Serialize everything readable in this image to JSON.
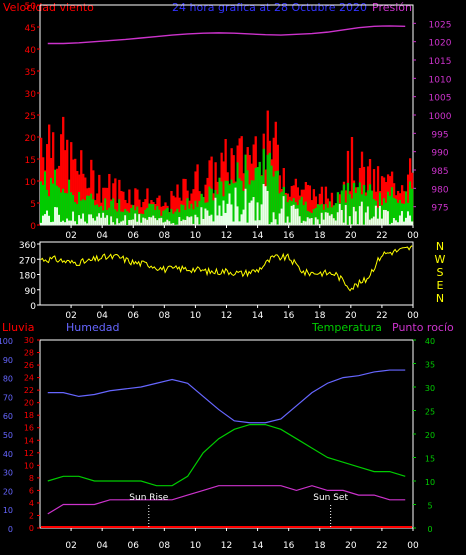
{
  "header": {
    "wind_label": "Velocidad viento",
    "title": "24 hora grafica at   28 Octubre 2020",
    "pressure_label": "Presión"
  },
  "colors": {
    "background": "#000000",
    "frame": "#ffffff",
    "wind_gust": "#ff0000",
    "wind_avg": "#00cc00",
    "wind_low": "#e8ffe8",
    "pressure": "#cc33cc",
    "direction": "#ffff00",
    "rain": "#ff0000",
    "humidity": "#6666ff",
    "temperature": "#00cc00",
    "dewpoint": "#cc33cc",
    "sun_marker": "#ffffff",
    "wind_axis": "#ff0000",
    "pressure_axis": "#cc33cc",
    "direction_axis": "#ffffff"
  },
  "chart_data": [
    {
      "type": "area",
      "name": "wind-pressure",
      "x_ticks": [
        "02",
        "04",
        "06",
        "08",
        "10",
        "12",
        "14",
        "16",
        "18",
        "20",
        "22",
        "00"
      ],
      "wind_axis": {
        "ylim": [
          0,
          50
        ],
        "ticks": [
          "0",
          "5",
          "10",
          "15",
          "20",
          "25",
          "30",
          "35",
          "40",
          "45",
          "50"
        ]
      },
      "pressure_axis": {
        "ylim": [
          970,
          1030
        ],
        "ticks": [
          "975",
          "980",
          "985",
          "990",
          "995",
          "1000",
          "1005",
          "1010",
          "1015",
          "1020",
          "1025"
        ]
      },
      "x_hours": [
        1,
        2,
        3,
        4,
        5,
        6,
        7,
        8,
        9,
        10,
        11,
        12,
        13,
        14,
        15,
        16,
        17,
        18,
        19,
        20,
        21,
        22,
        23,
        24
      ],
      "wind_gust": [
        20,
        14,
        11,
        9,
        8,
        7,
        6,
        4,
        7,
        10,
        11,
        14,
        15,
        18,
        18,
        10,
        8,
        6,
        7,
        14,
        11,
        9,
        10,
        12
      ],
      "wind_avg": [
        10,
        8,
        6,
        5,
        5,
        4,
        4,
        3,
        4,
        6,
        7,
        10,
        12,
        14,
        13,
        7,
        5,
        4,
        5,
        10,
        8,
        6,
        7,
        8
      ],
      "wind_low": [
        3,
        3,
        2,
        2,
        2,
        2,
        2,
        1,
        2,
        3,
        4,
        6,
        7,
        8,
        7,
        4,
        3,
        2,
        3,
        5,
        4,
        3,
        3,
        4
      ],
      "pressure": [
        1019.5,
        1019.5,
        1019.7,
        1020.0,
        1020.3,
        1020.6,
        1021.0,
        1021.4,
        1021.8,
        1022.1,
        1022.3,
        1022.4,
        1022.3,
        1022.1,
        1021.9,
        1021.8,
        1022.0,
        1022.2,
        1022.6,
        1023.2,
        1023.8,
        1024.2,
        1024.3,
        1024.2
      ]
    },
    {
      "type": "line",
      "name": "wind-direction",
      "x_ticks": [
        "02",
        "04",
        "06",
        "08",
        "10",
        "12",
        "14",
        "16",
        "18",
        "20",
        "22",
        "00"
      ],
      "ylim": [
        0,
        360
      ],
      "ticks": [
        "0",
        "90",
        "180",
        "270",
        "360"
      ],
      "compass": [
        "N",
        "W",
        "S",
        "E",
        "N"
      ],
      "x_hours": [
        1,
        2,
        3,
        4,
        5,
        6,
        7,
        8,
        9,
        10,
        11,
        12,
        13,
        14,
        15,
        16,
        17,
        18,
        19,
        20,
        21,
        22,
        23,
        24
      ],
      "direction": [
        270,
        250,
        255,
        280,
        285,
        250,
        240,
        210,
        215,
        210,
        195,
        200,
        185,
        205,
        280,
        280,
        190,
        190,
        185,
        100,
        150,
        300,
        320,
        340
      ]
    },
    {
      "type": "line",
      "name": "rain-humidity-temperature",
      "labels": {
        "rain": "Lluvia",
        "humidity": "Humedad",
        "temperature": "Temperatura",
        "dewpoint": "Punto rocío"
      },
      "x_ticks": [
        "02",
        "04",
        "06",
        "08",
        "10",
        "12",
        "14",
        "16",
        "18",
        "20",
        "22",
        "00"
      ],
      "humidity_axis": {
        "ylim": [
          0,
          100
        ],
        "ticks": [
          "0",
          "10",
          "20",
          "30",
          "40",
          "50",
          "60",
          "70",
          "80",
          "90",
          "100"
        ]
      },
      "rain_axis": {
        "ylim": [
          0,
          30
        ],
        "ticks": [
          "0",
          "2",
          "4",
          "6",
          "8",
          "10",
          "12",
          "14",
          "16",
          "18",
          "20",
          "22",
          "24",
          "26",
          "28",
          "30"
        ]
      },
      "temperature_axis": {
        "ylim": [
          0,
          40
        ],
        "ticks": [
          "0",
          "5",
          "10",
          "15",
          "20",
          "25",
          "30",
          "35",
          "40"
        ]
      },
      "x_hours": [
        1,
        2,
        3,
        4,
        5,
        6,
        7,
        8,
        9,
        10,
        11,
        12,
        13,
        14,
        15,
        16,
        17,
        18,
        19,
        20,
        21,
        22,
        23,
        24
      ],
      "humidity": [
        72,
        72,
        70,
        71,
        73,
        74,
        75,
        77,
        79,
        77,
        70,
        63,
        57,
        56,
        56,
        58,
        65,
        72,
        77,
        80,
        81,
        83,
        84,
        84
      ],
      "temperature": [
        10,
        11,
        11,
        10,
        10,
        10,
        10,
        9,
        9,
        11,
        16,
        19,
        21,
        22,
        22,
        21,
        19,
        17,
        15,
        14,
        13,
        12,
        12,
        11
      ],
      "dewpoint": [
        3,
        5,
        5,
        5,
        6,
        6,
        6,
        6,
        6,
        7,
        8,
        9,
        9,
        9,
        9,
        9,
        8,
        9,
        8,
        8,
        7,
        7,
        6,
        6
      ],
      "rain": [
        0,
        0,
        0,
        0,
        0,
        0,
        0,
        0,
        0,
        0,
        0,
        0,
        0,
        0,
        0,
        0,
        0,
        0,
        0,
        0,
        0,
        0,
        0,
        0
      ],
      "sun_rise": {
        "label": "Sun Rise",
        "hour": 7.0
      },
      "sun_set": {
        "label": "Sun Set",
        "hour": 18.7
      }
    }
  ]
}
